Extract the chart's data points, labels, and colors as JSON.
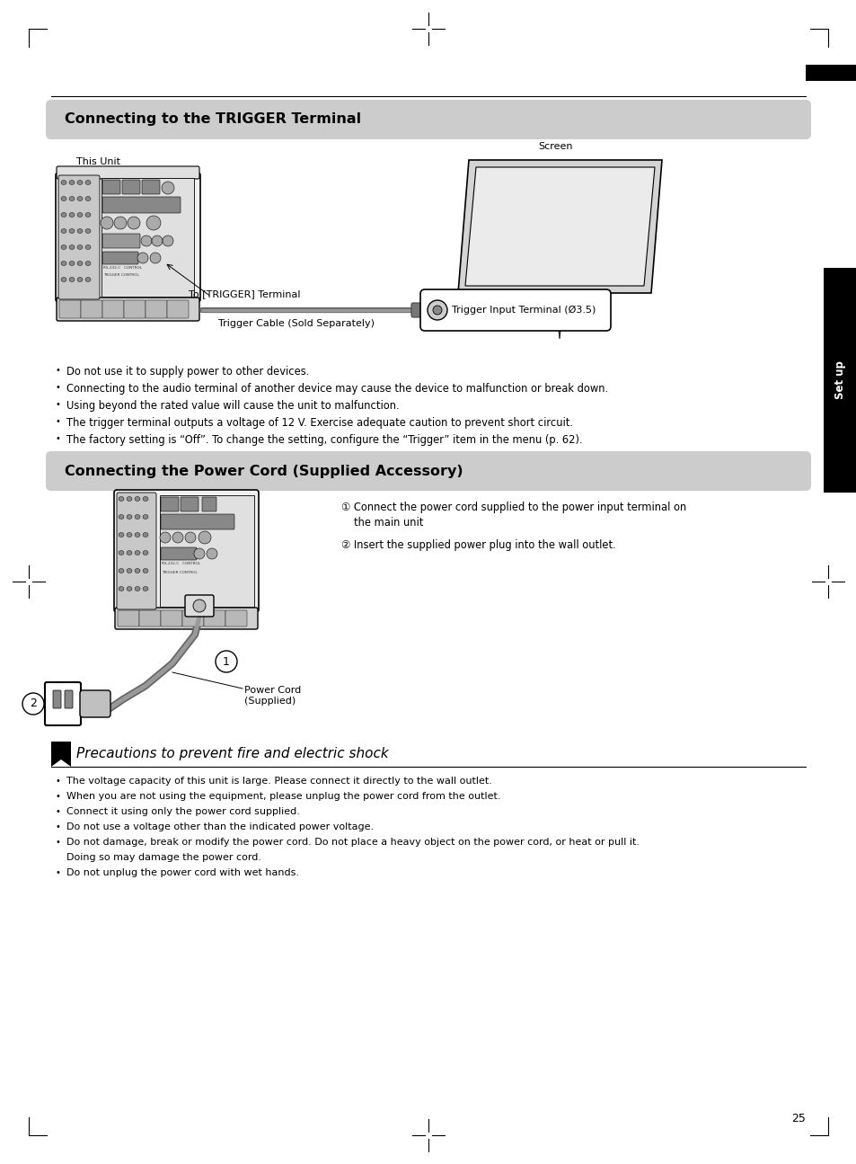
{
  "bg_color": "#ffffff",
  "section_title_bg": "#cccccc",
  "section1_title": "Connecting to the TRIGGER Terminal",
  "section2_title": "Connecting the Power Cord (Supplied Accessory)",
  "section3_title": "Precautions to prevent fire and electric shock",
  "sidebar_text": "Set up",
  "trigger_bullets": [
    "Do not use it to supply power to other devices.",
    "Connecting to the audio terminal of another device may cause the device to malfunction or break down.",
    "Using beyond the rated value will cause the unit to malfunction.",
    "The trigger terminal outputs a voltage of 12 V. Exercise adequate caution to prevent short circuit.",
    "The factory setting is “Off”. To change the setting, configure the “Trigger” item in the menu (p. 62)."
  ],
  "power_step1": "Connect the power cord supplied to the power input terminal on\nthe main unit",
  "power_step2": "Insert the supplied power plug into the wall outlet.",
  "precaution_bullets": [
    "The voltage capacity of this unit is large. Please connect it directly to the wall outlet.",
    "When you are not using the equipment, please unplug the power cord from the outlet.",
    "Connect it using only the power cord supplied.",
    "Do not use a voltage other than the indicated power voltage.",
    "Do not damage, break or modify the power cord. Do not place a heavy object on the power cord, or heat or pull it.\n    Doing so may damage the power cord.",
    "Do not unplug the power cord with wet hands."
  ],
  "label_this_unit": "This Unit",
  "label_screen": "Screen",
  "label_trigger_terminal": "To [TRIGGER] Terminal",
  "label_trigger_cable": "Trigger Cable (Sold Separately)",
  "label_trigger_input": "Trigger Input Terminal (Ø3.5)",
  "label_power_cord": "Power Cord\n(Supplied)",
  "page_number": "25"
}
